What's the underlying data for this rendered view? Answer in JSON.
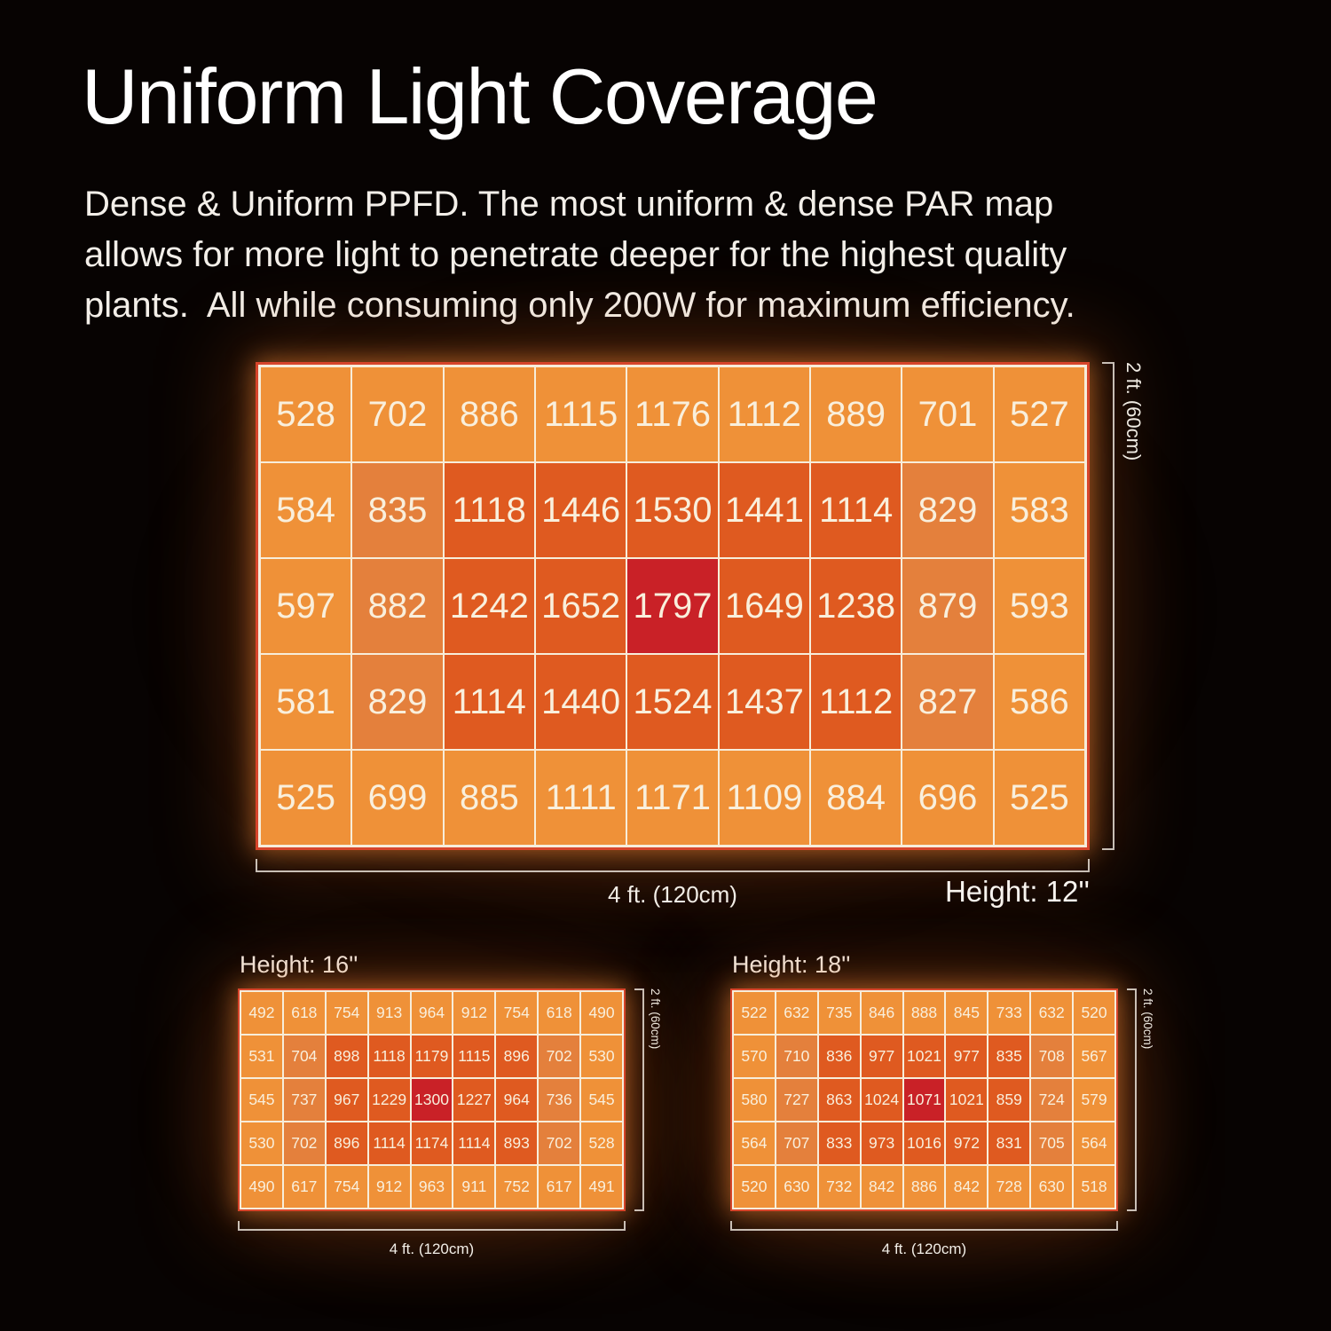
{
  "page": {
    "title": "Uniform Light Coverage",
    "description_lines": [
      "Dense & Uniform PPFD. The most uniform & dense PAR map",
      "allows for more light to penetrate deeper for the highest quality",
      "plants.  All while consuming only 200W for maximum efficiency."
    ]
  },
  "palette": {
    "background": "#070302",
    "cell_light": "#EF9138",
    "cell_medium": "#E4803C",
    "cell_deep": "#DF5A20",
    "cell_red": "#C92127",
    "grid_line": "#F7EDDA",
    "grid_border": "#D7452B",
    "cell_text": "#F9EFDC",
    "bracket": "rgba(242,235,226,0.8)"
  },
  "chart_data": [
    {
      "type": "heatmap",
      "title": "Height: 12''",
      "xlabel": "4 ft. (120cm)",
      "ylabel": "2 ft. (60cm)",
      "rows": 5,
      "cols": 9,
      "values": [
        [
          528,
          702,
          886,
          1115,
          1176,
          1112,
          889,
          701,
          527
        ],
        [
          584,
          835,
          1118,
          1446,
          1530,
          1441,
          1114,
          829,
          583
        ],
        [
          597,
          882,
          1242,
          1652,
          1797,
          1649,
          1238,
          879,
          593
        ],
        [
          581,
          829,
          1114,
          1440,
          1524,
          1437,
          1112,
          827,
          586
        ],
        [
          525,
          699,
          885,
          1111,
          1171,
          1109,
          884,
          696,
          525
        ]
      ]
    },
    {
      "type": "heatmap",
      "title": "Height: 16''",
      "xlabel": "4 ft. (120cm)",
      "ylabel": "2 ft. (60cm)",
      "rows": 5,
      "cols": 9,
      "values": [
        [
          492,
          618,
          754,
          913,
          964,
          912,
          754,
          618,
          490
        ],
        [
          531,
          704,
          898,
          1118,
          1179,
          1115,
          896,
          702,
          530
        ],
        [
          545,
          737,
          967,
          1229,
          1300,
          1227,
          964,
          736,
          545
        ],
        [
          530,
          702,
          896,
          1114,
          1174,
          1114,
          893,
          702,
          528
        ],
        [
          490,
          617,
          754,
          912,
          963,
          911,
          752,
          617,
          491
        ]
      ]
    },
    {
      "type": "heatmap",
      "title": "Height: 18''",
      "xlabel": "4 ft. (120cm)",
      "ylabel": "2 ft. (60cm)",
      "rows": 5,
      "cols": 9,
      "values": [
        [
          522,
          632,
          735,
          846,
          888,
          845,
          733,
          632,
          520
        ],
        [
          570,
          710,
          836,
          977,
          1021,
          977,
          835,
          708,
          567
        ],
        [
          580,
          727,
          863,
          1024,
          1071,
          1021,
          859,
          724,
          579
        ],
        [
          564,
          707,
          833,
          973,
          1016,
          972,
          831,
          705,
          564
        ],
        [
          520,
          630,
          732,
          842,
          886,
          842,
          728,
          630,
          518
        ]
      ]
    }
  ]
}
